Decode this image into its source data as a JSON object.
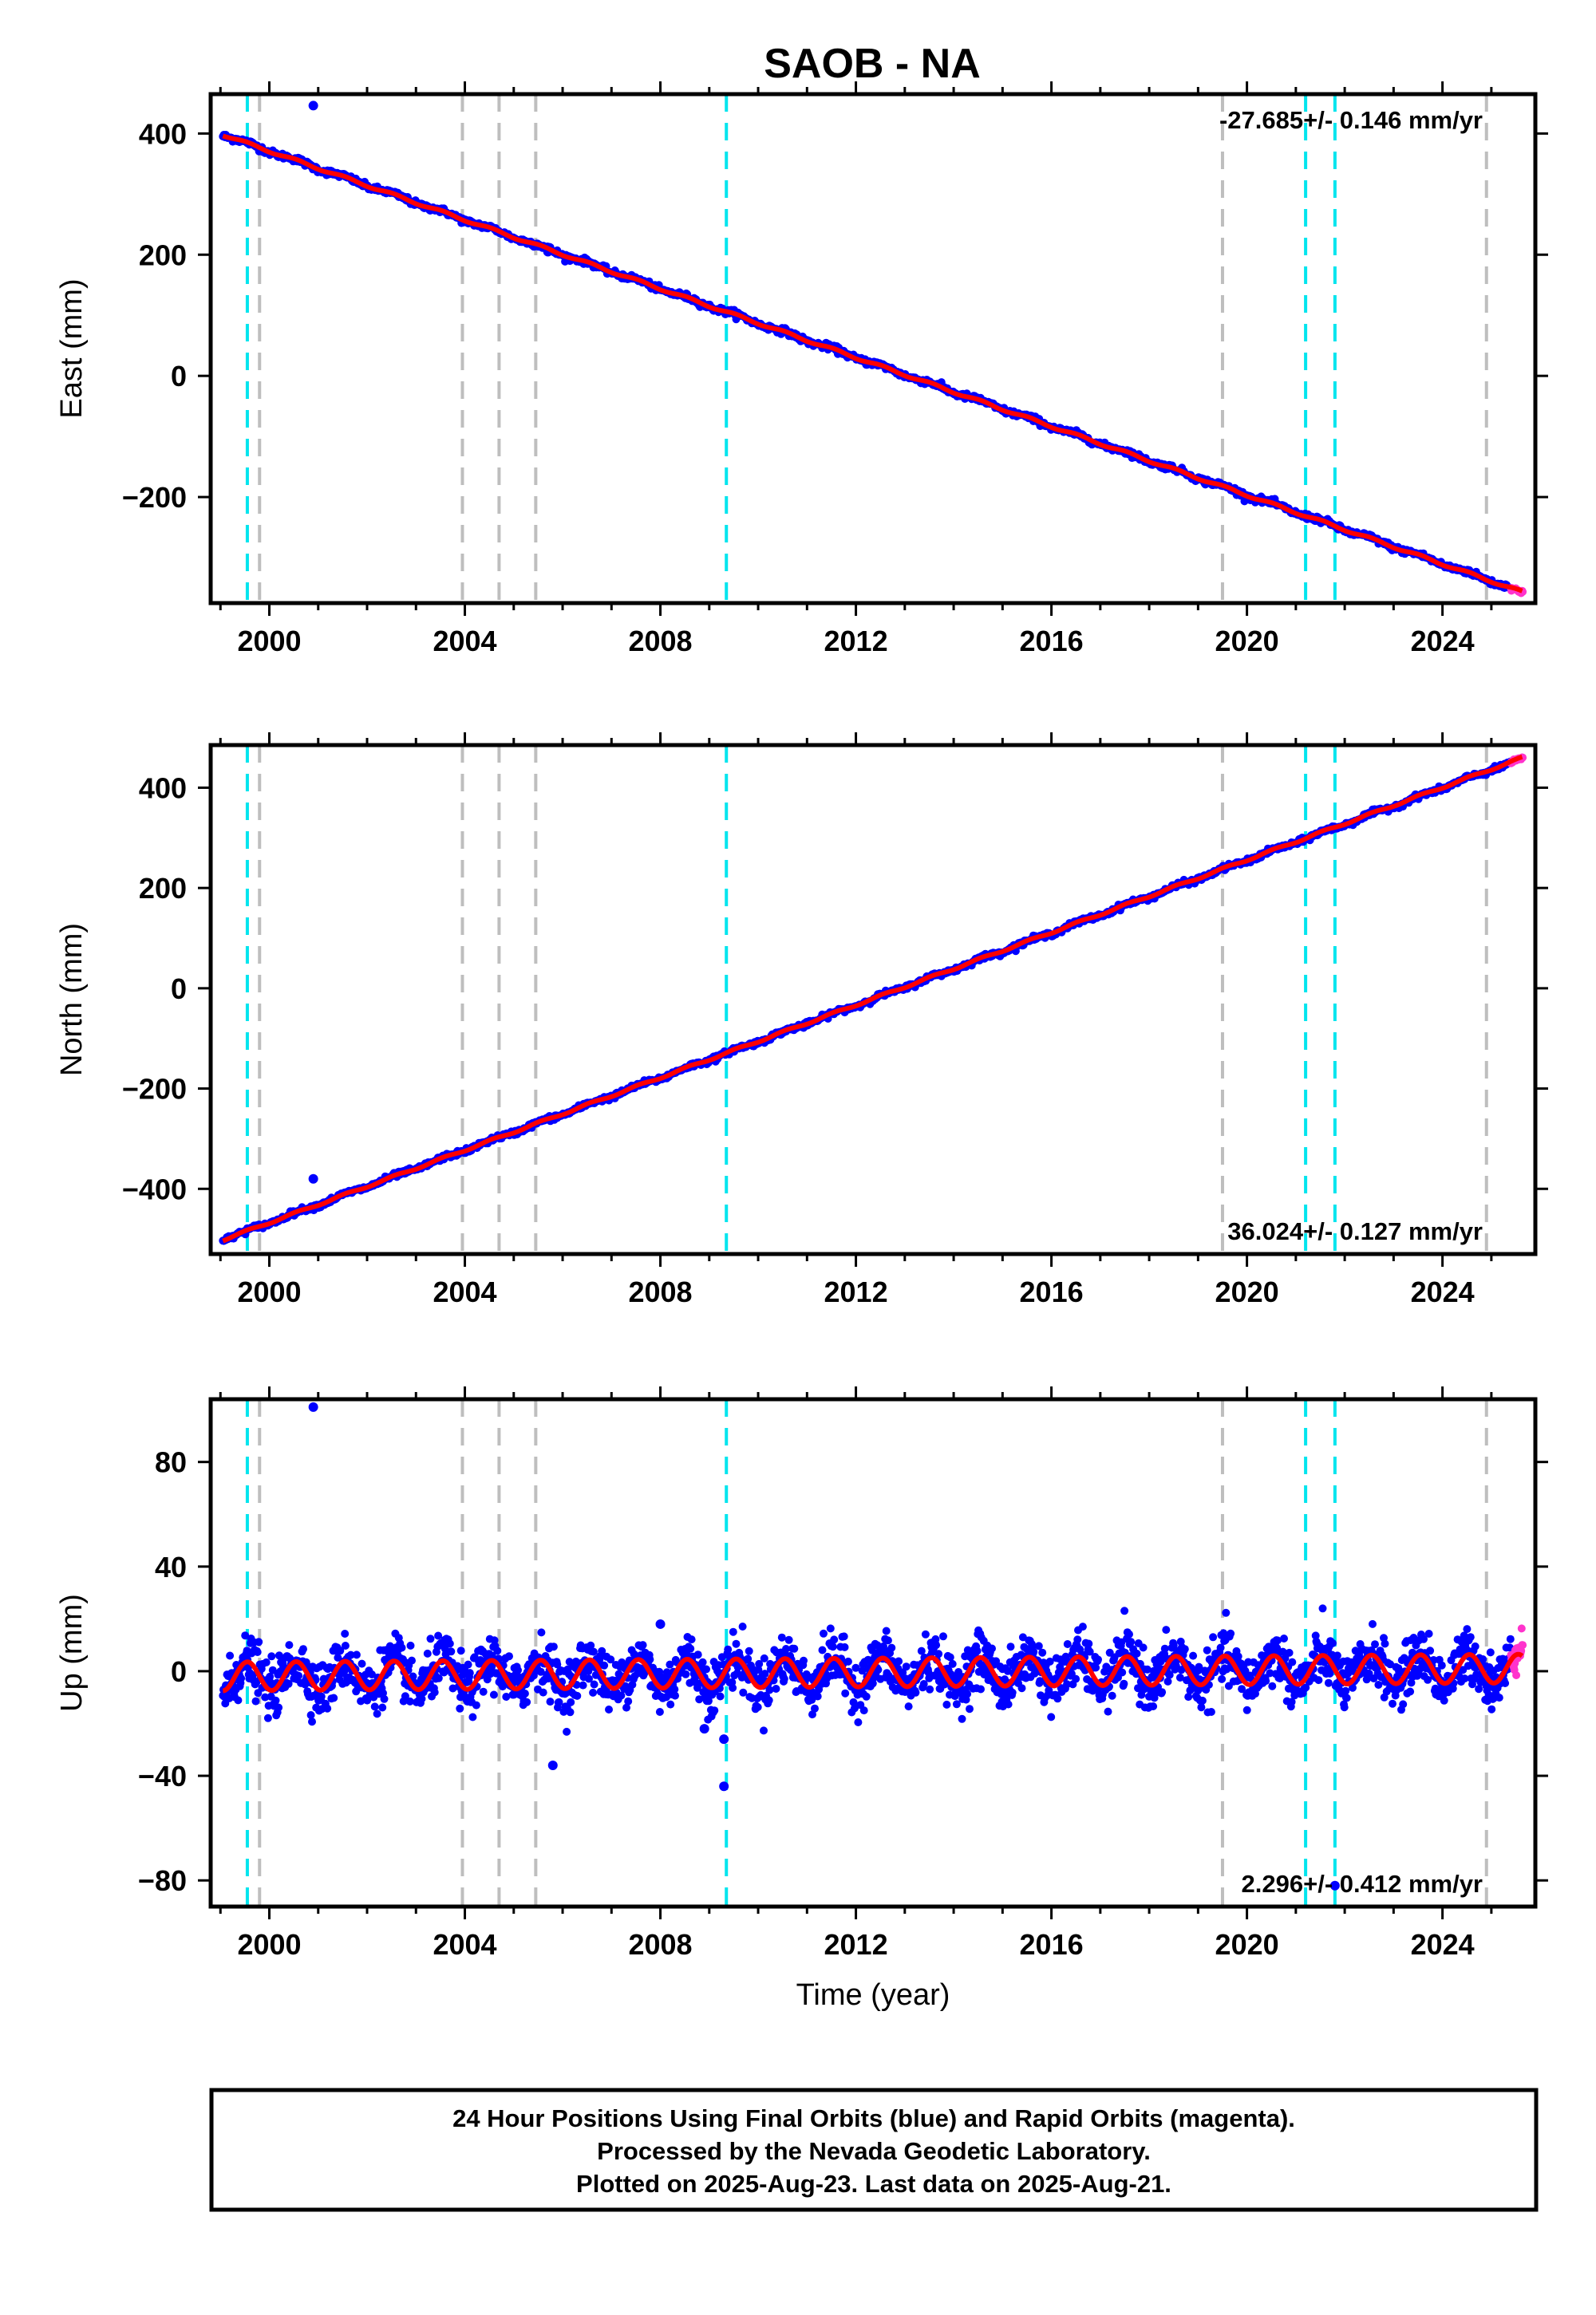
{
  "title": "SAOB - NA",
  "colors": {
    "final_orbits": "#0000ff",
    "rapid_orbits": "#ff33cc",
    "model": "#ff0000",
    "antenna_change": "#00e5ee",
    "equipment_change": "#bebebe"
  },
  "chart_data": [
    {
      "type": "scatter",
      "xlabel": "",
      "ylabel": "East (mm)",
      "xlim": [
        1998.8,
        2025.9
      ],
      "ylim": [
        -375,
        465
      ],
      "xticks": [
        2000,
        2004,
        2008,
        2012,
        2016,
        2020,
        2024
      ],
      "yticks": [
        -200,
        0,
        200,
        400
      ],
      "ytick_labels": [
        "−200",
        "0",
        "200",
        "400"
      ],
      "rate_label": "-27.685+/- 0.146 mm/yr",
      "rate_position": "top-right",
      "series": [
        {
          "role": "final",
          "x_start": 1999.05,
          "x_end": 2025.4,
          "trend_start": 398,
          "trend_end": -350,
          "seasonal_amplitude": 2,
          "noise": 2.5
        },
        {
          "role": "rapid",
          "x_start": 2025.4,
          "x_end": 2025.64,
          "trend_start": -350,
          "trend_end": -357,
          "seasonal_amplitude": 0,
          "noise": 1.5
        },
        {
          "role": "model",
          "x_start": 1999.05,
          "x_end": 2025.64,
          "trend_start": 398,
          "trend_end": -357,
          "seasonal_amplitude": 2
        }
      ],
      "outliers": [
        {
          "x": 2000.9,
          "y": 446
        },
        {
          "x": 2005.7,
          "y": 205
        }
      ]
    },
    {
      "type": "scatter",
      "xlabel": "",
      "ylabel": "North (mm)",
      "xlim": [
        1998.8,
        2025.9
      ],
      "ylim": [
        -530,
        485
      ],
      "xticks": [
        2000,
        2004,
        2008,
        2012,
        2016,
        2020,
        2024
      ],
      "yticks": [
        -400,
        -200,
        0,
        200,
        400
      ],
      "ytick_labels": [
        "−400",
        "−200",
        "0",
        "200",
        "400"
      ],
      "rate_label": "36.024+/- 0.127 mm/yr",
      "rate_position": "bottom-right",
      "series": [
        {
          "role": "final",
          "x_start": 1999.05,
          "x_end": 2025.4,
          "trend_start": -502,
          "trend_end": 450,
          "seasonal_amplitude": 2,
          "noise": 2.5
        },
        {
          "role": "rapid",
          "x_start": 2025.4,
          "x_end": 2025.64,
          "trend_start": 450,
          "trend_end": 460,
          "seasonal_amplitude": 0,
          "noise": 1.5
        },
        {
          "role": "model",
          "x_start": 1999.05,
          "x_end": 2025.64,
          "trend_start": -502,
          "trend_end": 460,
          "seasonal_amplitude": 2
        }
      ],
      "outliers": [
        {
          "x": 2000.9,
          "y": -380
        }
      ]
    },
    {
      "type": "scatter",
      "xlabel": "Time (year)",
      "ylabel": "Up (mm)",
      "xlim": [
        1998.8,
        2025.9
      ],
      "ylim": [
        -90,
        104
      ],
      "xticks": [
        2000,
        2004,
        2008,
        2012,
        2016,
        2020,
        2024
      ],
      "yticks": [
        -80,
        -40,
        0,
        40,
        80
      ],
      "ytick_labels": [
        "−80",
        "−40",
        "0",
        "40",
        "80"
      ],
      "rate_label": "2.296+/- 0.412 mm/yr",
      "rate_position": "bottom-right",
      "series": [
        {
          "role": "final",
          "x_start": 1999.05,
          "x_end": 2025.4,
          "trend_start": -2,
          "trend_end": 1,
          "seasonal_amplitude": 5.5,
          "noise": 5
        },
        {
          "role": "rapid",
          "x_start": 2025.4,
          "x_end": 2025.64,
          "trend_start": 4,
          "trend_end": 12,
          "seasonal_amplitude": 0,
          "noise": 3
        },
        {
          "role": "model",
          "x_start": 1999.05,
          "x_end": 2025.64,
          "trend_start": -2,
          "trend_end": 1,
          "seasonal_amplitude": 5.5
        }
      ],
      "outliers": [
        {
          "x": 2000.9,
          "y": 101
        },
        {
          "x": 2005.8,
          "y": -36
        },
        {
          "x": 2009.3,
          "y": -44
        },
        {
          "x": 2009.3,
          "y": -26
        },
        {
          "x": 2008.9,
          "y": -22
        },
        {
          "x": 2008.0,
          "y": 18
        },
        {
          "x": 2021.8,
          "y": -82
        }
      ]
    }
  ],
  "reference_lines": {
    "antenna_change": [
      1999.55,
      2009.35,
      2021.2,
      2021.8
    ],
    "equipment_change": [
      1999.8,
      2003.95,
      2004.7,
      2005.45,
      2019.5,
      2024.9
    ]
  },
  "footer": {
    "line1": "24 Hour Positions Using Final Orbits (blue) and Rapid Orbits (magenta).",
    "line2": "Processed by the Nevada Geodetic Laboratory.",
    "line3": "Plotted on 2025-Aug-23. Last data on 2025-Aug-21."
  }
}
